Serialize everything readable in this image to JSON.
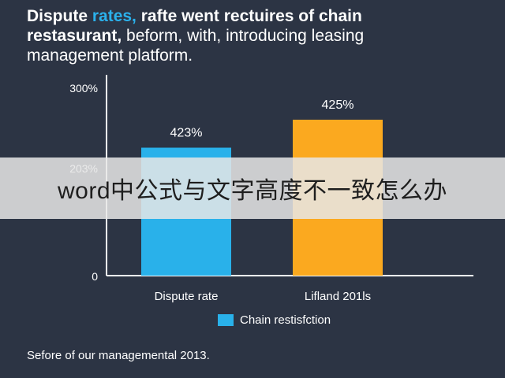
{
  "title": {
    "line1_part1": "Dispute ",
    "line1_highlight": "rates,",
    "line1_part2": " rafte went rectuires of chain",
    "line2_bold": "restasurant,",
    "line2_rest": " beform, with, introducing leasing",
    "line3": "management platform."
  },
  "chart_data": {
    "type": "bar",
    "categories": [
      "Dispute rate",
      "Lifland 201ls"
    ],
    "values": [
      423,
      425
    ],
    "data_labels": [
      "423%",
      "425%"
    ],
    "y_tick_labels": [
      "0",
      "203%",
      "300%"
    ],
    "ylim": [
      0,
      425
    ],
    "grid": false,
    "bar_colors": [
      "#29b1ea",
      "#fba91f"
    ],
    "legend": {
      "label": "Chain restisfction",
      "color": "#29b1ea",
      "position": "bottom-center"
    }
  },
  "footnote": "Sefore of our managemental 2013.",
  "overlay": {
    "text": "word中公式与文字高度不一致怎么办"
  },
  "colors": {
    "background": "#2c3444",
    "axis": "#ffffff",
    "text": "#ffffff"
  }
}
